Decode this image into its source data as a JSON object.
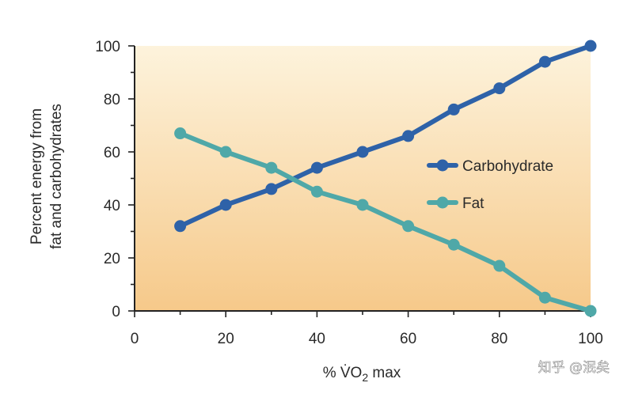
{
  "chart_data": {
    "type": "line",
    "title": "",
    "xlabel": "% V̇O",
    "xlabel_subscript": "2",
    "xlabel_suffix": " max",
    "ylabel_line1": "Percent energy from",
    "ylabel_line2": "fat and carbohydrates",
    "xlim": [
      0,
      100
    ],
    "ylim": [
      0,
      100
    ],
    "x_ticks": [
      0,
      20,
      40,
      60,
      80,
      100
    ],
    "y_ticks": [
      0,
      20,
      40,
      60,
      80,
      100
    ],
    "grid": false,
    "legend_position": "right",
    "background_gradient": [
      "#f6c98a",
      "#fdf3dc"
    ],
    "series": [
      {
        "name": "Carbohydrate",
        "color": "#2e62a8",
        "x": [
          10,
          20,
          30,
          40,
          50,
          60,
          70,
          80,
          90,
          100
        ],
        "y": [
          32,
          40,
          46,
          54,
          60,
          66,
          76,
          84,
          94,
          100
        ]
      },
      {
        "name": "Fat",
        "color": "#4fa8a8",
        "x": [
          10,
          20,
          30,
          40,
          50,
          60,
          70,
          80,
          90,
          100
        ],
        "y": [
          67,
          60,
          54,
          45,
          40,
          32,
          25,
          17,
          5,
          0
        ]
      }
    ]
  },
  "watermark": "知乎 @泯矣"
}
